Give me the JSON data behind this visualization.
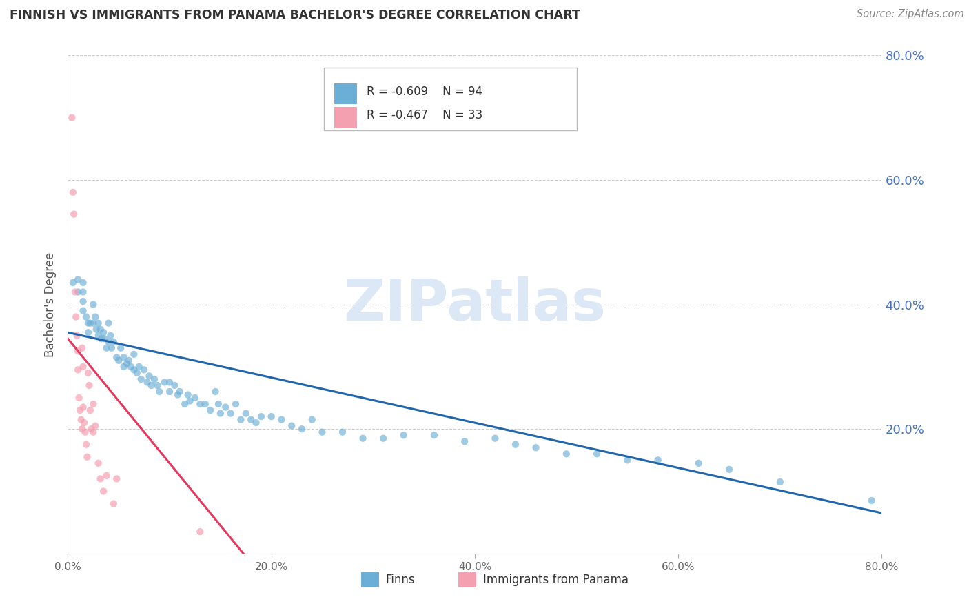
{
  "title": "FINNISH VS IMMIGRANTS FROM PANAMA BACHELOR'S DEGREE CORRELATION CHART",
  "source": "Source: ZipAtlas.com",
  "ylabel": "Bachelor's Degree",
  "watermark": "ZIPatlas",
  "xlim": [
    0.0,
    0.8
  ],
  "ylim": [
    0.0,
    0.8
  ],
  "xticks": [
    0.0,
    0.2,
    0.4,
    0.6,
    0.8
  ],
  "yticks": [
    0.2,
    0.4,
    0.6,
    0.8
  ],
  "ytick_labels_right": [
    "20.0%",
    "40.0%",
    "60.0%",
    "80.0%"
  ],
  "xtick_labels": [
    "0.0%",
    "20.0%",
    "40.0%",
    "60.0%",
    "80.0%"
  ],
  "blue_color": "#6baed6",
  "blue_line_color": "#2166ac",
  "pink_color": "#f4a0b0",
  "pink_line_color": "#e8365d",
  "legend_r_blue": "R = -0.609",
  "legend_n_blue": "N = 94",
  "legend_r_pink": "R = -0.467",
  "legend_n_pink": "N = 33",
  "legend_label_blue": "Finns",
  "legend_label_pink": "Immigrants from Panama",
  "blue_scatter_x": [
    0.005,
    0.01,
    0.01,
    0.015,
    0.015,
    0.015,
    0.015,
    0.018,
    0.02,
    0.02,
    0.022,
    0.025,
    0.025,
    0.027,
    0.028,
    0.03,
    0.03,
    0.032,
    0.033,
    0.035,
    0.036,
    0.038,
    0.04,
    0.04,
    0.042,
    0.043,
    0.045,
    0.048,
    0.05,
    0.052,
    0.055,
    0.055,
    0.058,
    0.06,
    0.062,
    0.065,
    0.065,
    0.068,
    0.07,
    0.072,
    0.075,
    0.078,
    0.08,
    0.082,
    0.085,
    0.088,
    0.09,
    0.095,
    0.1,
    0.1,
    0.105,
    0.108,
    0.11,
    0.115,
    0.118,
    0.12,
    0.125,
    0.13,
    0.135,
    0.14,
    0.145,
    0.148,
    0.15,
    0.155,
    0.16,
    0.165,
    0.17,
    0.175,
    0.18,
    0.185,
    0.19,
    0.2,
    0.21,
    0.22,
    0.23,
    0.24,
    0.25,
    0.27,
    0.29,
    0.31,
    0.33,
    0.36,
    0.39,
    0.42,
    0.44,
    0.46,
    0.49,
    0.52,
    0.55,
    0.58,
    0.62,
    0.65,
    0.7,
    0.79
  ],
  "blue_scatter_y": [
    0.435,
    0.44,
    0.42,
    0.435,
    0.42,
    0.405,
    0.39,
    0.38,
    0.37,
    0.355,
    0.37,
    0.4,
    0.37,
    0.38,
    0.36,
    0.37,
    0.35,
    0.36,
    0.345,
    0.355,
    0.345,
    0.33,
    0.37,
    0.34,
    0.35,
    0.33,
    0.34,
    0.315,
    0.31,
    0.33,
    0.3,
    0.315,
    0.305,
    0.31,
    0.3,
    0.32,
    0.295,
    0.29,
    0.3,
    0.28,
    0.295,
    0.275,
    0.285,
    0.27,
    0.28,
    0.27,
    0.26,
    0.275,
    0.26,
    0.275,
    0.27,
    0.255,
    0.26,
    0.24,
    0.255,
    0.245,
    0.25,
    0.24,
    0.24,
    0.23,
    0.26,
    0.24,
    0.225,
    0.235,
    0.225,
    0.24,
    0.215,
    0.225,
    0.215,
    0.21,
    0.22,
    0.22,
    0.215,
    0.205,
    0.2,
    0.215,
    0.195,
    0.195,
    0.185,
    0.185,
    0.19,
    0.19,
    0.18,
    0.185,
    0.175,
    0.17,
    0.16,
    0.16,
    0.15,
    0.15,
    0.145,
    0.135,
    0.115,
    0.085
  ],
  "pink_scatter_x": [
    0.004,
    0.005,
    0.006,
    0.007,
    0.008,
    0.009,
    0.01,
    0.01,
    0.011,
    0.012,
    0.013,
    0.014,
    0.014,
    0.015,
    0.015,
    0.016,
    0.017,
    0.018,
    0.019,
    0.02,
    0.021,
    0.022,
    0.023,
    0.025,
    0.025,
    0.027,
    0.03,
    0.032,
    0.035,
    0.038,
    0.045,
    0.048,
    0.13
  ],
  "pink_scatter_y": [
    0.7,
    0.58,
    0.545,
    0.42,
    0.38,
    0.35,
    0.325,
    0.295,
    0.25,
    0.23,
    0.215,
    0.2,
    0.33,
    0.3,
    0.235,
    0.21,
    0.195,
    0.175,
    0.155,
    0.29,
    0.27,
    0.23,
    0.2,
    0.24,
    0.195,
    0.205,
    0.145,
    0.12,
    0.1,
    0.125,
    0.08,
    0.12,
    0.035
  ],
  "blue_line_x": [
    0.0,
    0.8
  ],
  "blue_line_y": [
    0.355,
    0.065
  ],
  "pink_line_x": [
    0.0,
    0.175
  ],
  "pink_line_y": [
    0.345,
    -0.005
  ],
  "background_color": "#ffffff",
  "grid_color": "#cccccc",
  "title_color": "#333333",
  "right_axis_color": "#4472c4",
  "marker_size": 55
}
